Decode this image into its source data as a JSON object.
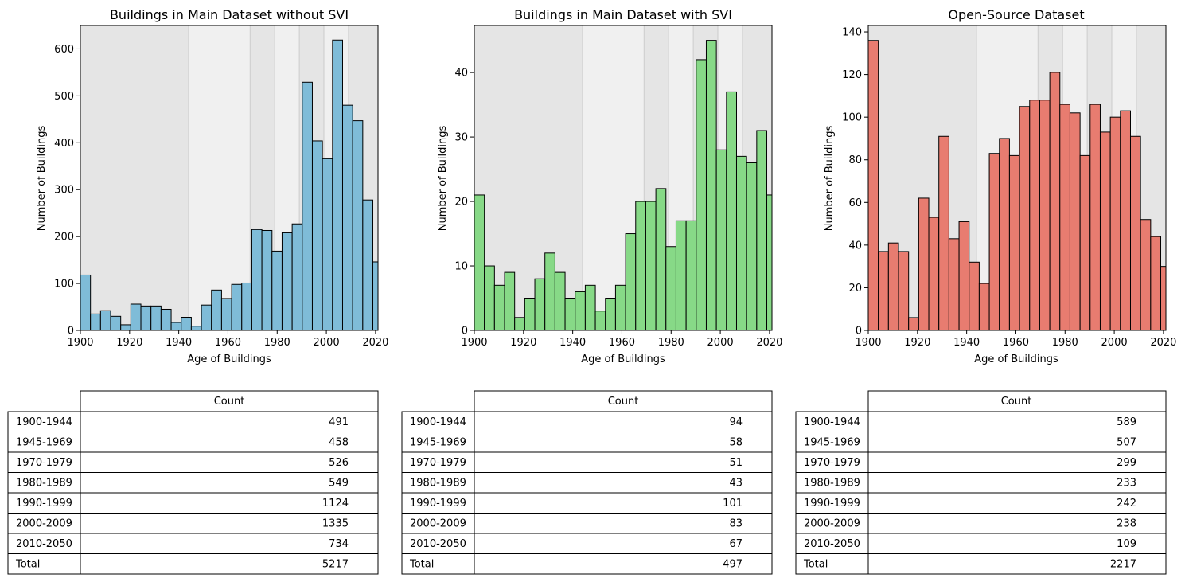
{
  "chart_data": [
    {
      "type": "bar",
      "title": "Buildings in Main Dataset without SVI",
      "xlabel": "Age of Buildings",
      "ylabel": "Number of Buildings",
      "xlim": [
        1900,
        2021
      ],
      "ylim": [
        0,
        650
      ],
      "xticks": [
        1900,
        1920,
        1940,
        1960,
        1980,
        2000,
        2020
      ],
      "yticks": [
        0,
        100,
        200,
        300,
        400,
        500,
        600
      ],
      "bar_color": "#7fbcd8",
      "bins": [
        1900,
        1904.1,
        1908.2,
        1912.3,
        1916.4,
        1920.5,
        1924.6,
        1928.7,
        1932.8,
        1936.9,
        1941,
        1945.1,
        1949.2,
        1953.3,
        1957.4,
        1961.5,
        1965.6,
        1969.7,
        1973.8,
        1977.9,
        1982,
        1986.1,
        1990.2,
        1994.3,
        1998.4,
        2002.5,
        2006.6,
        2010.7,
        2014.8,
        2018.9
      ],
      "bin_width": 4.1,
      "values": [
        118,
        35,
        42,
        30,
        12,
        56,
        52,
        52,
        45,
        17,
        28,
        9,
        54,
        86,
        68,
        98,
        101,
        215,
        213,
        169,
        208,
        227,
        529,
        404,
        366,
        619,
        480,
        447,
        278,
        146
      ],
      "table": {
        "col_label": "Count",
        "rows": [
          {
            "label": "1900-1944",
            "value": "491"
          },
          {
            "label": "1945-1969",
            "value": "458"
          },
          {
            "label": "1970-1979",
            "value": "526"
          },
          {
            "label": "1980-1989",
            "value": "549"
          },
          {
            "label": "1990-1999",
            "value": "1124"
          },
          {
            "label": "2000-2009",
            "value": "1335"
          },
          {
            "label": "2010-2050",
            "value": "734"
          },
          {
            "label": "Total",
            "value": "5217"
          }
        ]
      }
    },
    {
      "type": "bar",
      "title": "Buildings in Main Dataset with SVI",
      "xlabel": "Age of Buildings",
      "ylabel": "Number of Buildings",
      "xlim": [
        1900,
        2021
      ],
      "ylim": [
        0,
        47.3
      ],
      "xticks": [
        1900,
        1920,
        1940,
        1960,
        1980,
        2000,
        2020
      ],
      "yticks": [
        0,
        10,
        20,
        30,
        40
      ],
      "bar_color": "#87d987",
      "bins": [
        1900,
        1904.1,
        1908.2,
        1912.3,
        1916.4,
        1920.5,
        1924.6,
        1928.7,
        1932.8,
        1936.9,
        1941,
        1945.1,
        1949.2,
        1953.3,
        1957.4,
        1961.5,
        1965.6,
        1969.7,
        1973.8,
        1977.9,
        1982,
        1986.1,
        1990.2,
        1994.3,
        1998.4,
        2002.5,
        2006.6,
        2010.7,
        2014.8,
        2018.9
      ],
      "bin_width": 4.1,
      "values": [
        21,
        10,
        7,
        9,
        2,
        5,
        8,
        12,
        9,
        5,
        6,
        7,
        3,
        5,
        7,
        15,
        20,
        20,
        22,
        13,
        17,
        17,
        42,
        45,
        28,
        37,
        27,
        26,
        31,
        21
      ],
      "table": {
        "col_label": "Count",
        "rows": [
          {
            "label": "1900-1944",
            "value": "94"
          },
          {
            "label": "1945-1969",
            "value": "58"
          },
          {
            "label": "1970-1979",
            "value": "51"
          },
          {
            "label": "1980-1989",
            "value": "43"
          },
          {
            "label": "1990-1999",
            "value": "101"
          },
          {
            "label": "2000-2009",
            "value": "83"
          },
          {
            "label": "2010-2050",
            "value": "67"
          },
          {
            "label": "Total",
            "value": "497"
          }
        ]
      }
    },
    {
      "type": "bar",
      "title": "Open-Source Dataset",
      "xlabel": "Age of Buildings",
      "ylabel": "Number of Buildings",
      "xlim": [
        1900,
        2021
      ],
      "ylim": [
        0,
        143
      ],
      "xticks": [
        1900,
        1920,
        1940,
        1960,
        1980,
        2000,
        2020
      ],
      "yticks": [
        0,
        20,
        40,
        60,
        80,
        100,
        120,
        140
      ],
      "bar_color": "#e87c70",
      "bins": [
        1900,
        1904.1,
        1908.2,
        1912.3,
        1916.4,
        1920.5,
        1924.6,
        1928.7,
        1932.8,
        1936.9,
        1941,
        1945.1,
        1949.2,
        1953.3,
        1957.4,
        1961.5,
        1965.6,
        1969.7,
        1973.8,
        1977.9,
        1982,
        1986.1,
        1990.2,
        1994.3,
        1998.4,
        2002.5,
        2006.6,
        2010.7,
        2014.8,
        2018.9
      ],
      "bin_width": 4.1,
      "values": [
        136,
        37,
        41,
        37,
        6,
        62,
        53,
        91,
        43,
        51,
        32,
        22,
        83,
        90,
        82,
        105,
        108,
        108,
        121,
        106,
        102,
        82,
        106,
        93,
        100,
        103,
        91,
        52,
        44,
        30
      ],
      "table": {
        "col_label": "Count",
        "rows": [
          {
            "label": "1900-1944",
            "value": "589"
          },
          {
            "label": "1945-1969",
            "value": "507"
          },
          {
            "label": "1970-1979",
            "value": "299"
          },
          {
            "label": "1980-1989",
            "value": "233"
          },
          {
            "label": "1990-1999",
            "value": "242"
          },
          {
            "label": "2000-2009",
            "value": "238"
          },
          {
            "label": "2010-2050",
            "value": "109"
          },
          {
            "label": "Total",
            "value": "2217"
          }
        ]
      }
    }
  ],
  "period_bands": [
    {
      "start": 1900,
      "end": 1944,
      "shade": "#e5e5e5"
    },
    {
      "start": 1944,
      "end": 1969,
      "shade": "#f0f0f0"
    },
    {
      "start": 1969,
      "end": 1979,
      "shade": "#e5e5e5"
    },
    {
      "start": 1979,
      "end": 1989,
      "shade": "#f0f0f0"
    },
    {
      "start": 1989,
      "end": 1999,
      "shade": "#e5e5e5"
    },
    {
      "start": 1999,
      "end": 2009,
      "shade": "#f0f0f0"
    },
    {
      "start": 2009,
      "end": 2050,
      "shade": "#e5e5e5"
    }
  ]
}
